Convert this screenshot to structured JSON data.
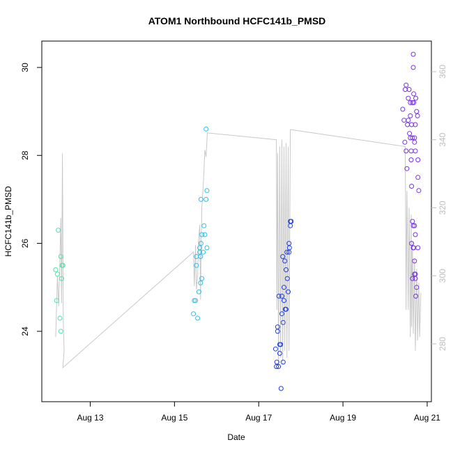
{
  "chart_data": {
    "type": "scatter",
    "title": "ATOM1 Northbound HCFC141b_PMSD",
    "xlabel": "Date",
    "ylabel": "HCFC141b_PMSD",
    "x_ticks": [
      "Aug 13",
      "Aug 15",
      "Aug 17",
      "Aug 19",
      "Aug 21"
    ],
    "x_tick_days": [
      13,
      15,
      17,
      19,
      21
    ],
    "xlim": [
      11.85,
      21.1
    ],
    "y_left": {
      "ticks": [
        24,
        26,
        28,
        30
      ],
      "ylim": [
        22.4,
        30.6
      ]
    },
    "y_right": {
      "ticks": [
        280,
        300,
        320,
        340,
        360
      ],
      "ylim": [
        263,
        369
      ],
      "color": "#bdbdbd"
    },
    "line_color": "#c8c8c8",
    "grid": false,
    "series": [
      {
        "color": "#4fe3a9",
        "points": [
          [
            12.18,
            25.4
          ],
          [
            12.2,
            24.7
          ],
          [
            12.22,
            25.3
          ],
          [
            12.24,
            26.3
          ],
          [
            12.28,
            24.3
          ],
          [
            12.3,
            24.0
          ],
          [
            12.3,
            25.7
          ],
          [
            12.32,
            25.2
          ],
          [
            12.33,
            25.5
          ],
          [
            12.35,
            25.5
          ]
        ]
      },
      {
        "color": "#2fbfe6",
        "points": [
          [
            15.45,
            24.4
          ],
          [
            15.47,
            24.7
          ],
          [
            15.5,
            24.7
          ],
          [
            15.52,
            25.5
          ],
          [
            15.52,
            25.7
          ],
          [
            15.55,
            24.3
          ],
          [
            15.58,
            24.9
          ],
          [
            15.6,
            25.8
          ],
          [
            15.6,
            25.9
          ],
          [
            15.62,
            25.1
          ],
          [
            15.62,
            25.7
          ],
          [
            15.63,
            26.0
          ],
          [
            15.63,
            27.0
          ],
          [
            15.65,
            25.2
          ],
          [
            15.65,
            26.2
          ],
          [
            15.68,
            25.8
          ],
          [
            15.7,
            26.4
          ],
          [
            15.72,
            26.2
          ],
          [
            15.75,
            27.0
          ],
          [
            15.77,
            25.9
          ],
          [
            15.77,
            27.2
          ],
          [
            15.75,
            28.6
          ]
        ]
      },
      {
        "color": "#1f3fe0",
        "points": [
          [
            17.4,
            23.6
          ],
          [
            17.42,
            23.2
          ],
          [
            17.43,
            23.3
          ],
          [
            17.45,
            24.0
          ],
          [
            17.45,
            24.1
          ],
          [
            17.47,
            23.2
          ],
          [
            17.48,
            24.8
          ],
          [
            17.5,
            23.5
          ],
          [
            17.5,
            23.7
          ],
          [
            17.52,
            23.7
          ],
          [
            17.53,
            22.7
          ],
          [
            17.55,
            24.4
          ],
          [
            17.55,
            24.8
          ],
          [
            17.57,
            25.7
          ],
          [
            17.58,
            24.2
          ],
          [
            17.58,
            23.3
          ],
          [
            17.6,
            24.7
          ],
          [
            17.6,
            25.0
          ],
          [
            17.62,
            25.6
          ],
          [
            17.63,
            24.5
          ],
          [
            17.65,
            24.5
          ],
          [
            17.65,
            25.4
          ],
          [
            17.67,
            25.8
          ],
          [
            17.68,
            25.2
          ],
          [
            17.7,
            24.9
          ],
          [
            17.72,
            26.0
          ],
          [
            17.72,
            25.8
          ],
          [
            17.75,
            26.5
          ],
          [
            17.75,
            26.4
          ],
          [
            17.73,
            25.9
          ],
          [
            17.77,
            26.5
          ]
        ]
      },
      {
        "color": "#7a2fe6",
        "points": [
          [
            20.42,
            29.05
          ],
          [
            20.45,
            28.8
          ],
          [
            20.47,
            28.3
          ],
          [
            20.48,
            29.5
          ],
          [
            20.5,
            29.6
          ],
          [
            20.5,
            28.1
          ],
          [
            20.52,
            27.7
          ],
          [
            20.53,
            28.7
          ],
          [
            20.55,
            29.3
          ],
          [
            20.55,
            28.8
          ],
          [
            20.57,
            29.5
          ],
          [
            20.58,
            28.5
          ],
          [
            20.6,
            28.4
          ],
          [
            20.6,
            29.2
          ],
          [
            20.6,
            28.9
          ],
          [
            20.62,
            28.1
          ],
          [
            20.62,
            27.9
          ],
          [
            20.63,
            27.3
          ],
          [
            20.63,
            28.7
          ],
          [
            20.65,
            29.2
          ],
          [
            20.65,
            28.4
          ],
          [
            20.67,
            30.3
          ],
          [
            20.67,
            30.0
          ],
          [
            20.68,
            29.4
          ],
          [
            20.68,
            29.2
          ],
          [
            20.7,
            28.4
          ],
          [
            20.7,
            28.3
          ],
          [
            20.72,
            28.7
          ],
          [
            20.72,
            28.1
          ],
          [
            20.73,
            29.3
          ],
          [
            20.75,
            29.0
          ],
          [
            20.77,
            28.9
          ],
          [
            20.78,
            27.9
          ],
          [
            20.78,
            27.5
          ],
          [
            20.8,
            27.2
          ],
          [
            20.63,
            26.0
          ],
          [
            20.65,
            26.5
          ],
          [
            20.67,
            26.4
          ],
          [
            20.68,
            25.9
          ],
          [
            20.7,
            26.4
          ],
          [
            20.7,
            25.3
          ],
          [
            20.72,
            25.3
          ],
          [
            20.72,
            25.2
          ],
          [
            20.73,
            24.8
          ],
          [
            20.75,
            25.0
          ],
          [
            20.78,
            25.9
          ],
          [
            20.65,
            25.2
          ],
          [
            20.67,
            25.9
          ],
          [
            20.72,
            26.2
          ],
          [
            20.7,
            25.6
          ]
        ]
      }
    ],
    "right_axis_line": [
      [
        12.18,
        282
      ],
      [
        12.22,
        300
      ],
      [
        12.25,
        291
      ],
      [
        12.28,
        305
      ],
      [
        12.3,
        317
      ],
      [
        12.32,
        292
      ],
      [
        12.34,
        336
      ],
      [
        12.36,
        287
      ],
      [
        12.38,
        278
      ],
      [
        12.35,
        273
      ],
      [
        15.45,
        307
      ],
      [
        15.47,
        297
      ],
      [
        15.5,
        309
      ],
      [
        15.52,
        296
      ],
      [
        15.55,
        300
      ],
      [
        15.57,
        310
      ],
      [
        15.6,
        315
      ],
      [
        15.62,
        293
      ],
      [
        15.63,
        307
      ],
      [
        15.65,
        320
      ],
      [
        15.68,
        326
      ],
      [
        15.7,
        331
      ],
      [
        15.72,
        337
      ],
      [
        15.75,
        335
      ],
      [
        15.78,
        342
      ],
      [
        17.42,
        340
      ],
      [
        17.43,
        290
      ],
      [
        17.45,
        336
      ],
      [
        17.47,
        273
      ],
      [
        17.5,
        338
      ],
      [
        17.52,
        276
      ],
      [
        17.55,
        340
      ],
      [
        17.57,
        274
      ],
      [
        17.6,
        338
      ],
      [
        17.62,
        278
      ],
      [
        17.65,
        339
      ],
      [
        17.67,
        276
      ],
      [
        17.7,
        338
      ],
      [
        17.72,
        278
      ],
      [
        17.75,
        343
      ],
      [
        20.48,
        338
      ],
      [
        20.5,
        290
      ],
      [
        20.52,
        325
      ],
      [
        20.55,
        290
      ],
      [
        20.57,
        320
      ],
      [
        20.6,
        282
      ],
      [
        20.62,
        318
      ],
      [
        20.63,
        285
      ],
      [
        20.65,
        310
      ],
      [
        20.67,
        283
      ],
      [
        20.7,
        305
      ],
      [
        20.72,
        278
      ],
      [
        20.75,
        302
      ],
      [
        20.77,
        281
      ],
      [
        20.8,
        298
      ],
      [
        20.82,
        282
      ],
      [
        20.85,
        295
      ]
    ]
  }
}
